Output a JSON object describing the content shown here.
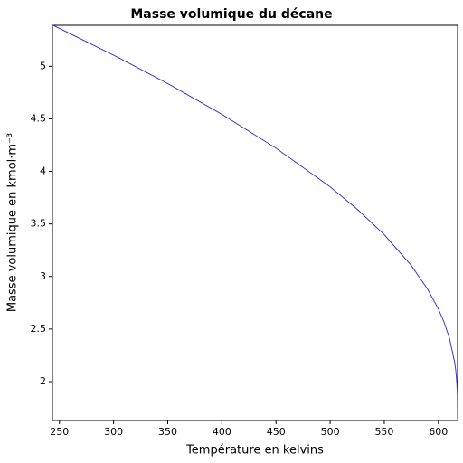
{
  "chart_data": {
    "type": "line",
    "title": "Masse volumique du décane",
    "x_label": "Température en kelvins",
    "y_label": "Masse volumique en kmol·m⁻³",
    "x": [
      243.5,
      250,
      300,
      350,
      400,
      450,
      500,
      525,
      550,
      575,
      590,
      600,
      605,
      610,
      615,
      616,
      617,
      617.5,
      617.7
    ],
    "series": [
      {
        "color": "#3a3abf",
        "values": [
          5.394,
          5.361,
          5.106,
          4.836,
          4.543,
          4.221,
          3.853,
          3.64,
          3.398,
          3.104,
          2.88,
          2.69,
          2.571,
          2.42,
          2.185,
          2.108,
          1.99,
          1.875,
          1.632
        ]
      }
    ],
    "xlim": [
      243.5,
      617.7
    ],
    "ylim": [
      1.63,
      5.39
    ],
    "xticks": [
      250,
      300,
      350,
      400,
      450,
      500,
      550,
      600
    ],
    "yticks": [
      2,
      2.5,
      3,
      3.5,
      4,
      4.5,
      5
    ],
    "grid": false
  }
}
